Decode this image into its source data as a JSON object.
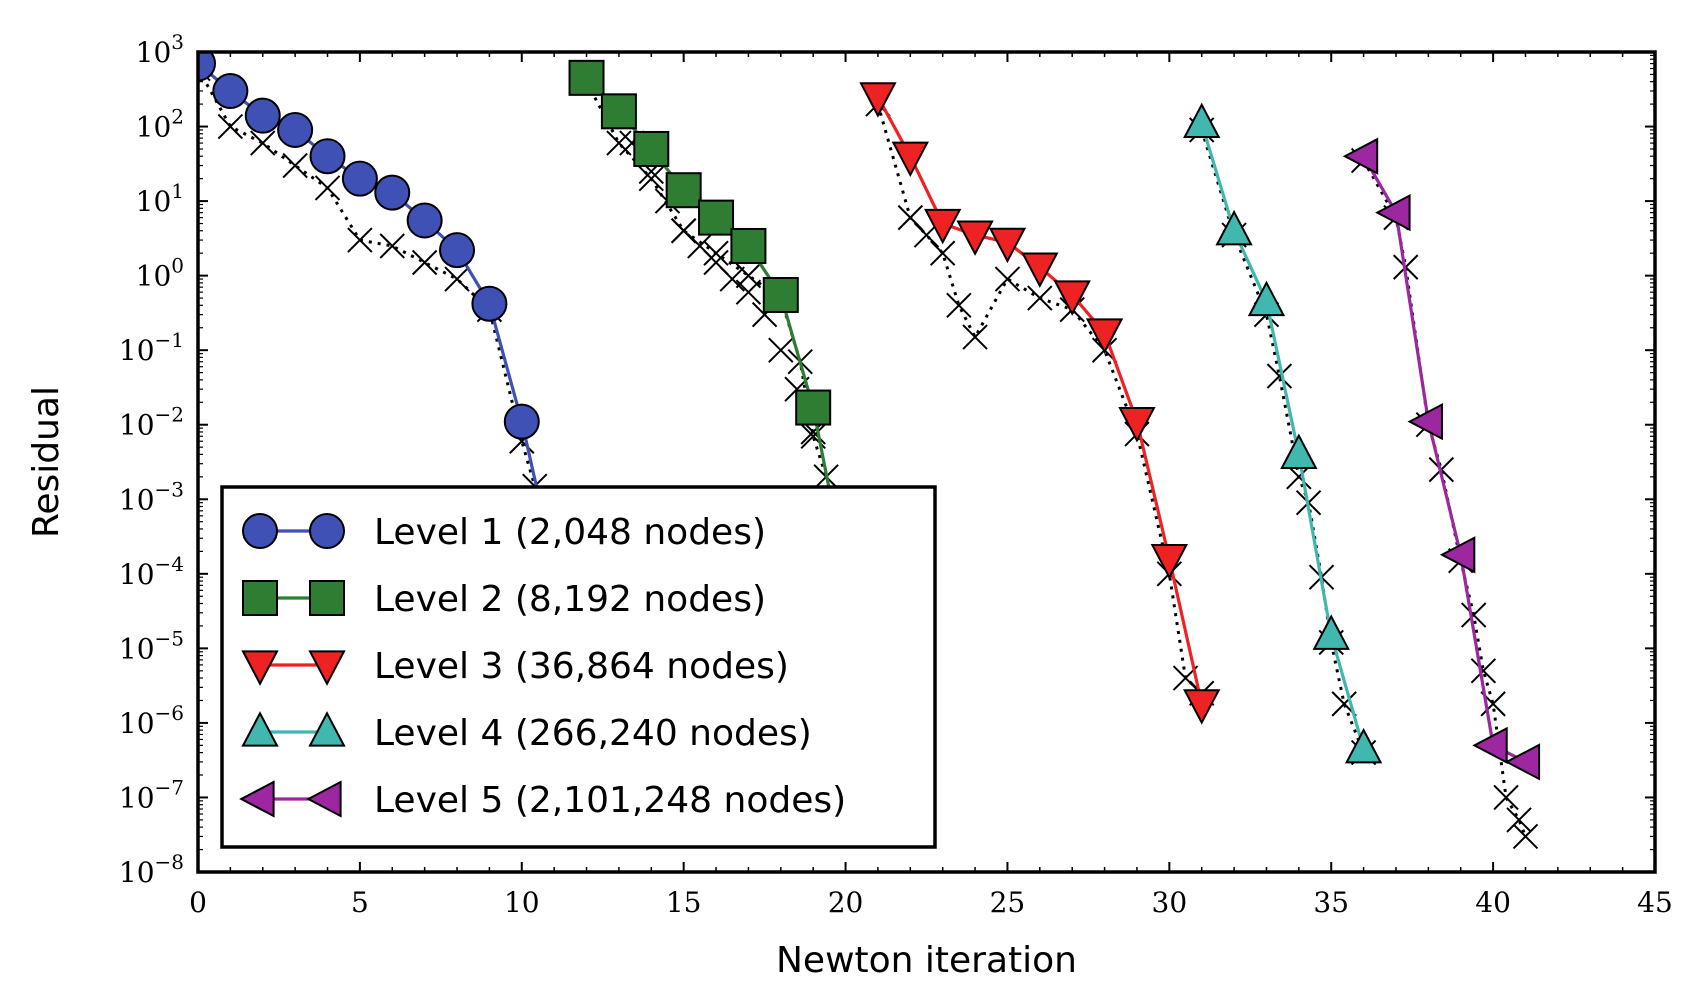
{
  "chart_data": {
    "type": "line",
    "xlabel": "Newton iteration",
    "ylabel": "Residual",
    "xlim": [
      0,
      45
    ],
    "ylim": [
      1e-08,
      1000.0
    ],
    "yscale": "log",
    "xticks": [
      0,
      5,
      10,
      15,
      20,
      25,
      30,
      35,
      40,
      45
    ],
    "ytick_exponents": [
      3,
      2,
      1,
      0,
      -1,
      -2,
      -3,
      -4,
      -5,
      -6,
      -7,
      -8
    ],
    "legend_position": "lower-left",
    "series": [
      {
        "name": "Level 1 (2,048 nodes)",
        "color": "#3f51b5",
        "marker": "circle",
        "x": [
          0,
          1,
          2,
          3,
          4,
          5,
          6,
          7,
          8,
          9,
          10,
          10.5
        ],
        "y": [
          700,
          300,
          140,
          90,
          40,
          20,
          13,
          5.5,
          2.2,
          0.42,
          0.011,
          0.0012
        ],
        "reference_x": [
          0,
          1,
          2,
          3,
          4,
          5,
          6,
          7,
          8,
          9,
          10,
          10.4
        ],
        "reference_y": [
          600,
          100,
          60,
          30,
          15,
          3,
          2.5,
          1.5,
          0.9,
          0.35,
          0.006,
          0.0015
        ]
      },
      {
        "name": "Level 2 (8,192 nodes)",
        "color": "#2e7d32",
        "marker": "square",
        "x": [
          12,
          13,
          14,
          15,
          16,
          17,
          18,
          19,
          19.6
        ],
        "y": [
          450,
          160,
          50,
          14,
          6,
          2.5,
          0.55,
          0.017,
          0.0008
        ],
        "reference_x": [
          12,
          13,
          14,
          15,
          16,
          17,
          18,
          18.6,
          19,
          19.4
        ],
        "reference_y": [
          400,
          60,
          20,
          4,
          2,
          1,
          0.5,
          0.07,
          0.007,
          0.002
        ],
        "reference_prefix_x": [
          12,
          13,
          13.4,
          14,
          14.5,
          15,
          15.5,
          16,
          16.5,
          17,
          17.5,
          18,
          18.5,
          19
        ],
        "reference_prefix_y": [
          380,
          150,
          60,
          25,
          10,
          4,
          2.5,
          1.5,
          0.9,
          0.6,
          0.3,
          0.1,
          0.03,
          0.008
        ]
      },
      {
        "name": "Level 3 (36,864 nodes)",
        "color": "#ee2222",
        "marker": "triangle-down",
        "x": [
          21,
          22,
          23,
          24,
          25,
          26,
          27,
          28,
          29,
          30,
          31
        ],
        "y": [
          250,
          40,
          5,
          3.5,
          2.8,
          1.3,
          0.55,
          0.17,
          0.011,
          0.00016,
          1.8e-06
        ],
        "reference_x": [
          21,
          22,
          22.5,
          23,
          23.5,
          24,
          25,
          26,
          27,
          28,
          29,
          30,
          30.5,
          31
        ],
        "reference_y": [
          200,
          6,
          3.5,
          2,
          0.4,
          0.15,
          0.9,
          0.5,
          0.35,
          0.1,
          0.0075,
          0.0001,
          4e-06,
          2.5e-06
        ]
      },
      {
        "name": "Level 4 (266,240 nodes)",
        "color": "#40b8b0",
        "marker": "triangle-up",
        "x": [
          31,
          32,
          33,
          34,
          35,
          36
        ],
        "y": [
          110,
          4,
          0.45,
          0.004,
          1.5e-05,
          4.5e-07
        ],
        "reference_x": [
          31,
          32,
          33,
          33.4,
          34,
          34.3,
          34.7,
          35,
          35.4,
          36
        ],
        "reference_y": [
          90,
          3.5,
          0.3,
          0.045,
          0.002,
          0.0009,
          9e-05,
          1.2e-05,
          1.8e-06,
          4e-07
        ]
      },
      {
        "name": "Level 5 (2,101,248 nodes)",
        "color": "#9c27a0",
        "marker": "triangle-left",
        "x": [
          36,
          37,
          38,
          39,
          40,
          41
        ],
        "y": [
          40,
          7,
          0.011,
          0.00018,
          5e-07,
          3e-07
        ],
        "reference_x": [
          36,
          37,
          37.3,
          38,
          38.4,
          39,
          39.4,
          39.7,
          40,
          40.4,
          40.8,
          41
        ],
        "reference_y": [
          35,
          6,
          1.3,
          0.01,
          0.0025,
          0.00015,
          2.8e-05,
          5e-06,
          1.8e-06,
          1e-07,
          5e-08,
          3e-08
        ]
      }
    ]
  }
}
